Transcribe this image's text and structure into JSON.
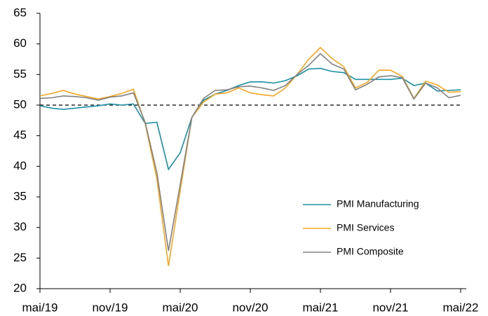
{
  "chart_data": {
    "type": "line",
    "categories": [
      "mai/19",
      null,
      null,
      null,
      null,
      null,
      "nov/19",
      null,
      null,
      null,
      null,
      null,
      "mai/20",
      null,
      null,
      null,
      null,
      null,
      "nov/20",
      null,
      null,
      null,
      null,
      null,
      "mai/21",
      null,
      null,
      null,
      null,
      null,
      "nov/21",
      null,
      null,
      null,
      null,
      null,
      "mai/22"
    ],
    "series": [
      {
        "name": "PMI Manufacturing",
        "color": "#1b8fa3",
        "values": [
          49.9,
          49.5,
          49.3,
          49.5,
          49.7,
          49.9,
          50.2,
          50.0,
          50.2,
          47.0,
          47.2,
          39.5,
          42.2,
          48.0,
          50.8,
          51.8,
          52.4,
          53.2,
          53.8,
          53.8,
          53.6,
          54.0,
          54.8,
          55.9,
          56.0,
          55.5,
          55.3,
          54.2,
          54.2,
          54.2,
          54.2,
          54.4,
          53.2,
          53.6,
          52.3,
          52.4,
          52.5
        ]
      },
      {
        "name": "PMI Services",
        "color": "#f5a623",
        "values": [
          51.5,
          51.9,
          52.4,
          51.8,
          51.4,
          51.0,
          51.4,
          51.9,
          52.6,
          47.0,
          38.0,
          23.7,
          36.0,
          48.0,
          50.5,
          51.8,
          52.0,
          52.8,
          52.0,
          51.7,
          51.5,
          52.8,
          55.0,
          57.5,
          59.4,
          57.6,
          56.3,
          52.8,
          53.7,
          55.7,
          55.7,
          54.7,
          51.1,
          53.9,
          53.3,
          52.1,
          52.2
        ]
      },
      {
        "name": "PMI Composite",
        "color": "#808080",
        "values": [
          51.1,
          51.2,
          51.5,
          51.4,
          51.2,
          50.8,
          51.3,
          51.5,
          52.0,
          47.2,
          39.0,
          26.2,
          37.0,
          48.0,
          51.1,
          52.4,
          52.5,
          53.0,
          53.1,
          52.8,
          52.4,
          53.2,
          55.0,
          56.5,
          58.4,
          56.7,
          55.9,
          52.5,
          53.4,
          54.6,
          54.8,
          54.5,
          51.0,
          53.6,
          52.8,
          51.2,
          51.6
        ]
      }
    ],
    "ylim": [
      20,
      65
    ],
    "yticks": [
      20,
      25,
      30,
      35,
      40,
      45,
      50,
      55,
      60,
      65
    ],
    "hline": 50,
    "legend": "lower right"
  }
}
